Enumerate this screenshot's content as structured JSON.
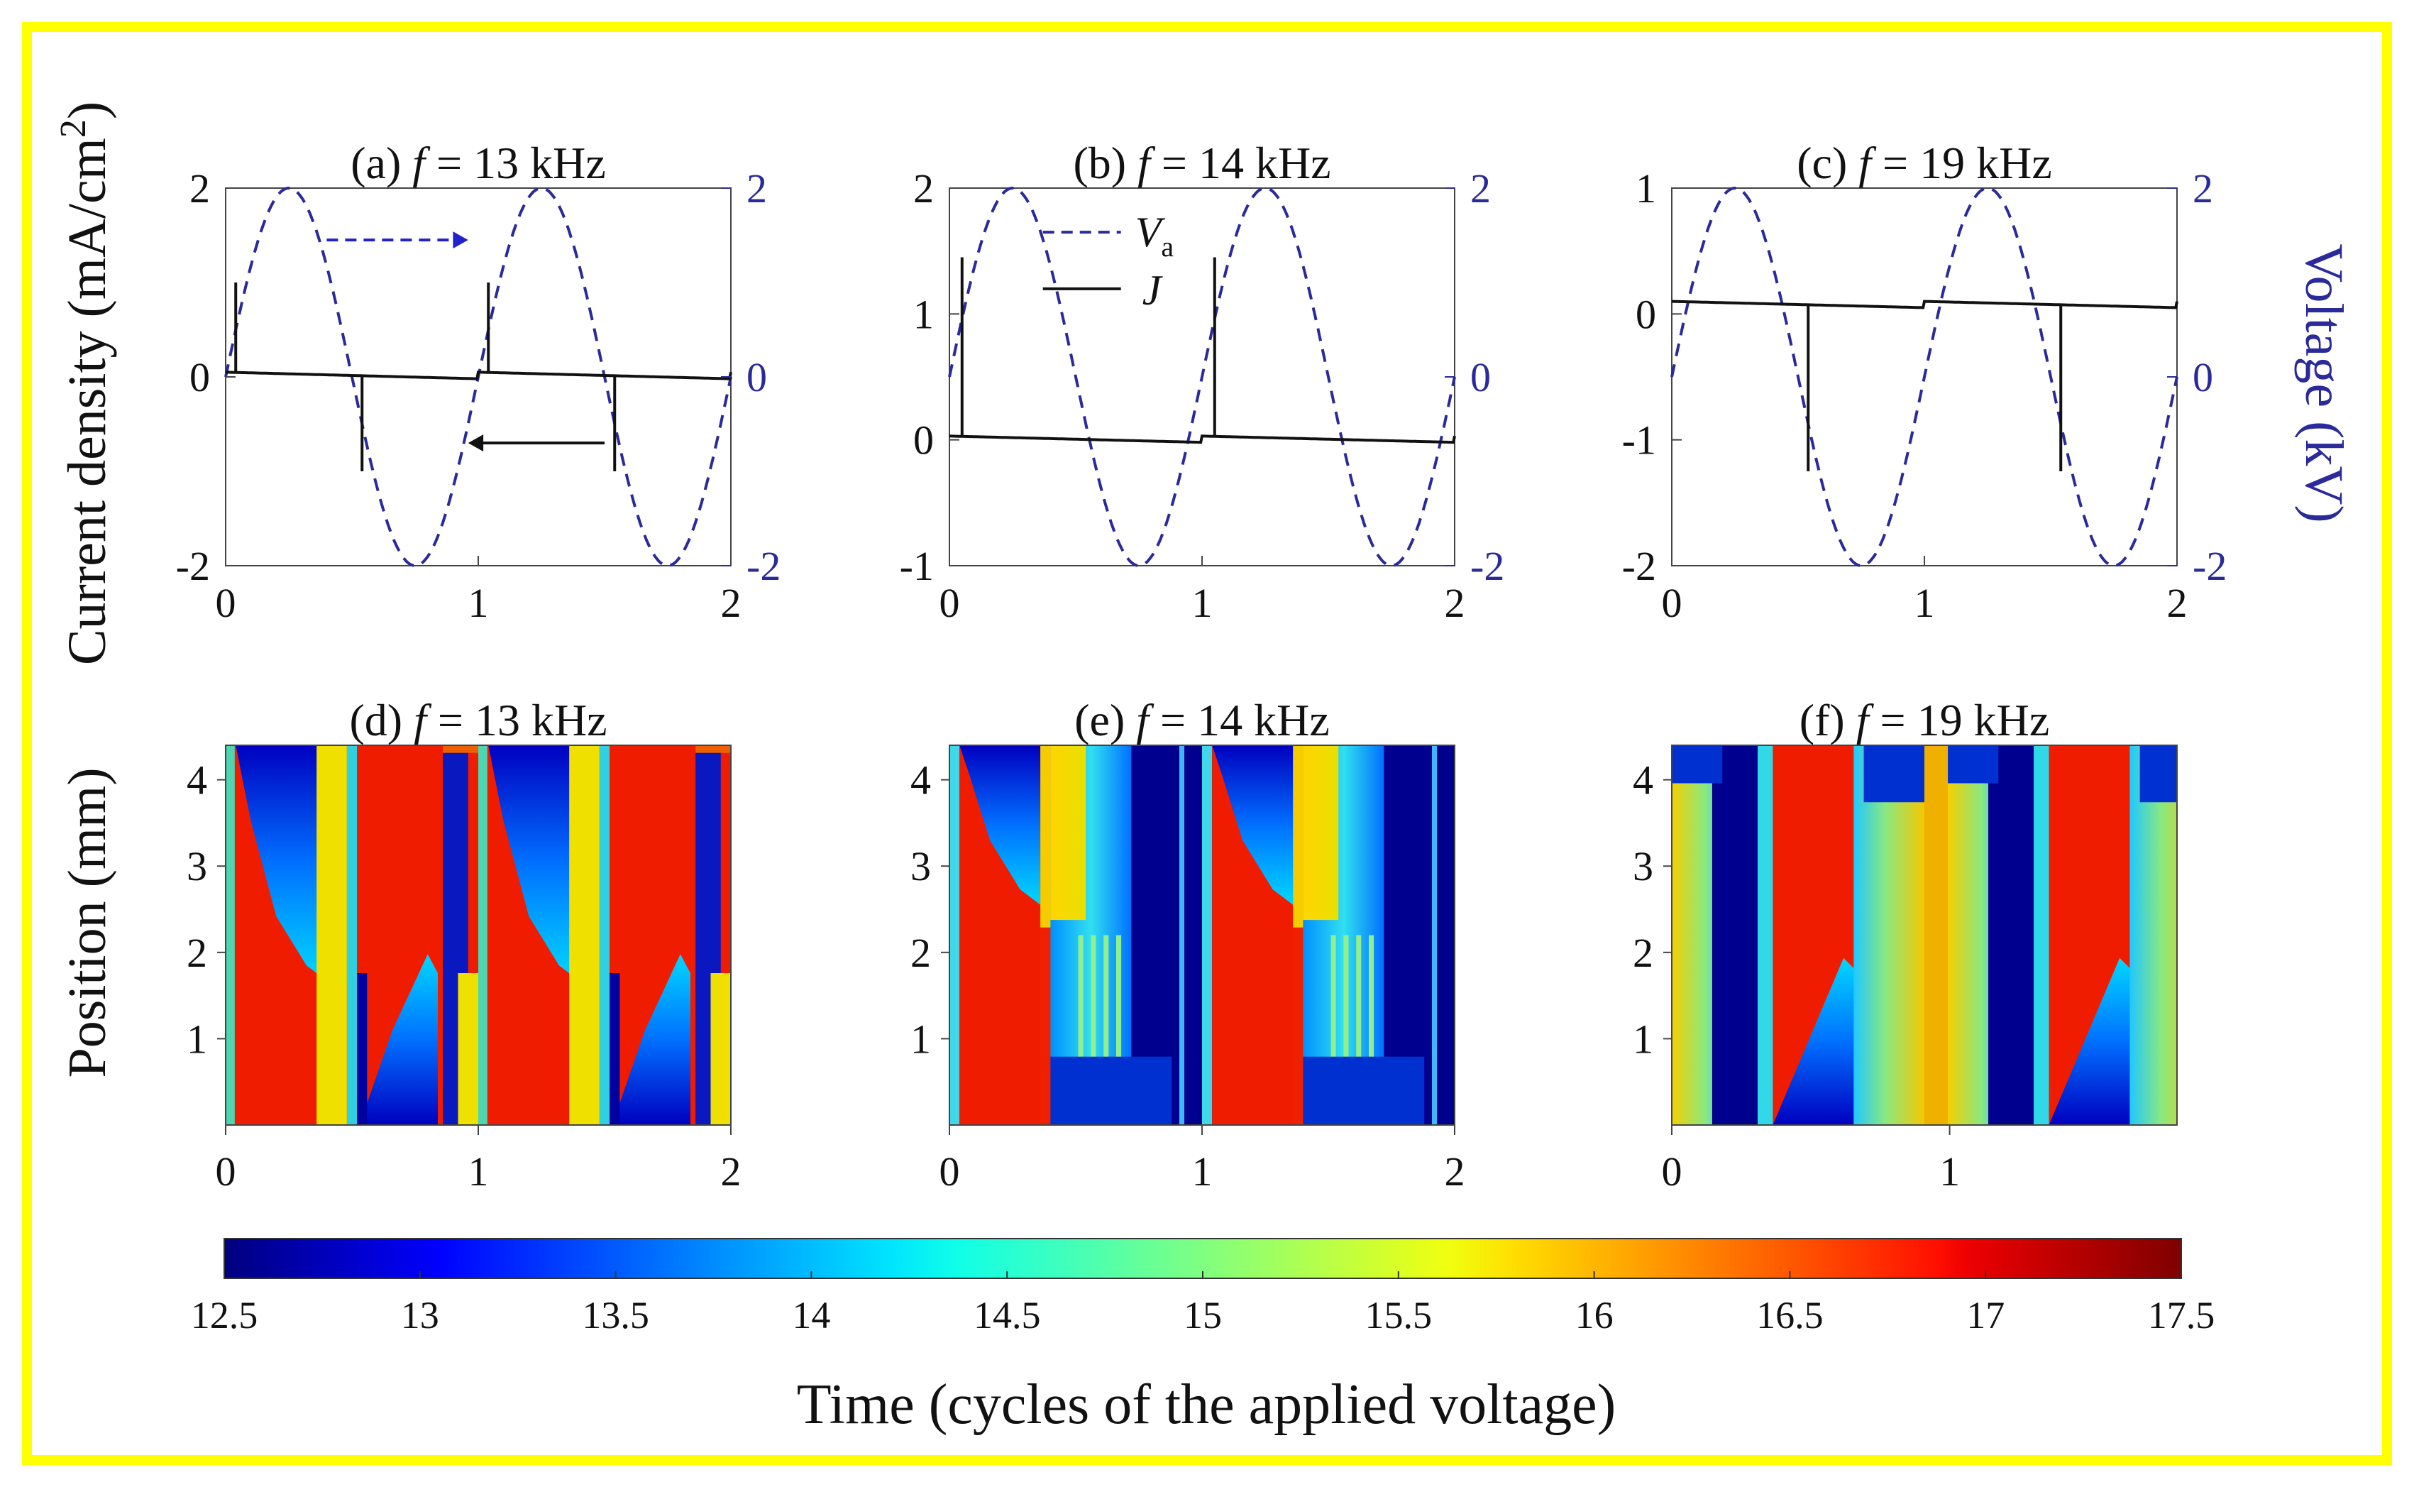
{
  "figure": {
    "ylabel_left_top": "Current density (mA/cm",
    "ylabel_left_top_sup": "2",
    "ylabel_left_top_end": ")",
    "ylabel_right_top": "Voltage (kV)",
    "ylabel_left_bottom": "Position (mm)",
    "colorbar_label": "Time (cycles of the applied voltage)",
    "colorbar_ticks": [
      "12.5",
      "13",
      "13.5",
      "14",
      "14.5",
      "15",
      "15.5",
      "16",
      "16.5",
      "17",
      "17.5"
    ],
    "colors": {
      "border": "#ffff00",
      "voltage": "#2a2a9a",
      "current": "#111111"
    }
  },
  "chart_data": [
    {
      "type": "line",
      "panel": "a",
      "title_prefix": "(a) ",
      "title_var": "f",
      "title_rest": " = 13 kHz",
      "xlim": [
        0,
        2
      ],
      "xticks": [
        "0",
        "1",
        "2"
      ],
      "ylim_left": [
        -2,
        2
      ],
      "yticks_left": [
        "-2",
        "0",
        "2"
      ],
      "ylim_right": [
        -2,
        2
      ],
      "yticks_right": [
        "-2",
        "0",
        "2"
      ],
      "voltage_amplitude": 2,
      "current_baseline": [
        0.05,
        -0.02
      ],
      "spikes": [
        {
          "x": 0.04,
          "y": 1.0
        },
        {
          "x": 0.54,
          "y": -1.0
        },
        {
          "x": 1.04,
          "y": 1.0
        },
        {
          "x": 1.54,
          "y": -1.0
        }
      ]
    },
    {
      "type": "line",
      "panel": "b",
      "title_prefix": "(b) ",
      "title_var": "f",
      "title_rest": " = 14 kHz",
      "xlim": [
        0,
        2
      ],
      "xticks": [
        "0",
        "1",
        "2"
      ],
      "ylim_left": [
        -1,
        2
      ],
      "yticks_left": [
        "-1",
        "0",
        "1",
        "2"
      ],
      "ylim_right": [
        -2,
        2
      ],
      "yticks_right": [
        "-2",
        "0",
        "2"
      ],
      "voltage_amplitude": 2,
      "current_baseline": [
        0.03,
        -0.02
      ],
      "spikes": [
        {
          "x": 0.05,
          "y": 1.45
        },
        {
          "x": 1.05,
          "y": 1.45
        }
      ],
      "legend": {
        "voltage_label": "V",
        "voltage_sub": "a",
        "current_label": "J"
      }
    },
    {
      "type": "line",
      "panel": "c",
      "title_prefix": "(c) ",
      "title_var": "f",
      "title_rest": " = 19 kHz",
      "xlim": [
        0,
        2
      ],
      "xticks": [
        "0",
        "1",
        "2"
      ],
      "ylim_left": [
        -2,
        1
      ],
      "yticks_left": [
        "-2",
        "-1",
        "0",
        "1"
      ],
      "ylim_right": [
        -2,
        2
      ],
      "yticks_right": [
        "-2",
        "0",
        "2"
      ],
      "voltage_amplitude": 2,
      "current_baseline": [
        0.1,
        0.05
      ],
      "spikes": [
        {
          "x": 0.54,
          "y": -1.25
        },
        {
          "x": 1.54,
          "y": -1.25
        }
      ]
    },
    {
      "type": "heatmap",
      "panel": "d",
      "title_prefix": "(d) ",
      "title_var": "f",
      "title_rest": " = 13 kHz",
      "xlim": [
        0,
        2
      ],
      "xticks": [
        "0",
        "1",
        "2"
      ],
      "ylim": [
        0,
        4.4
      ],
      "yticks": [
        "1",
        "2",
        "3",
        "4"
      ]
    },
    {
      "type": "heatmap",
      "panel": "e",
      "title_prefix": "(e) ",
      "title_var": "f",
      "title_rest": " = 14 kHz",
      "xlim": [
        0,
        2
      ],
      "xticks": [
        "0",
        "1",
        "2"
      ],
      "ylim": [
        0,
        4.4
      ],
      "yticks": [
        "1",
        "2",
        "3",
        "4"
      ]
    },
    {
      "type": "heatmap",
      "panel": "f",
      "title_prefix": "(f) ",
      "title_var": "f",
      "title_rest": " = 19 kHz",
      "xlim": [
        0,
        2
      ],
      "xticks": [
        "0",
        "1"
      ],
      "ylim": [
        0,
        4.4
      ],
      "yticks": [
        "1",
        "2",
        "3",
        "4"
      ]
    }
  ]
}
